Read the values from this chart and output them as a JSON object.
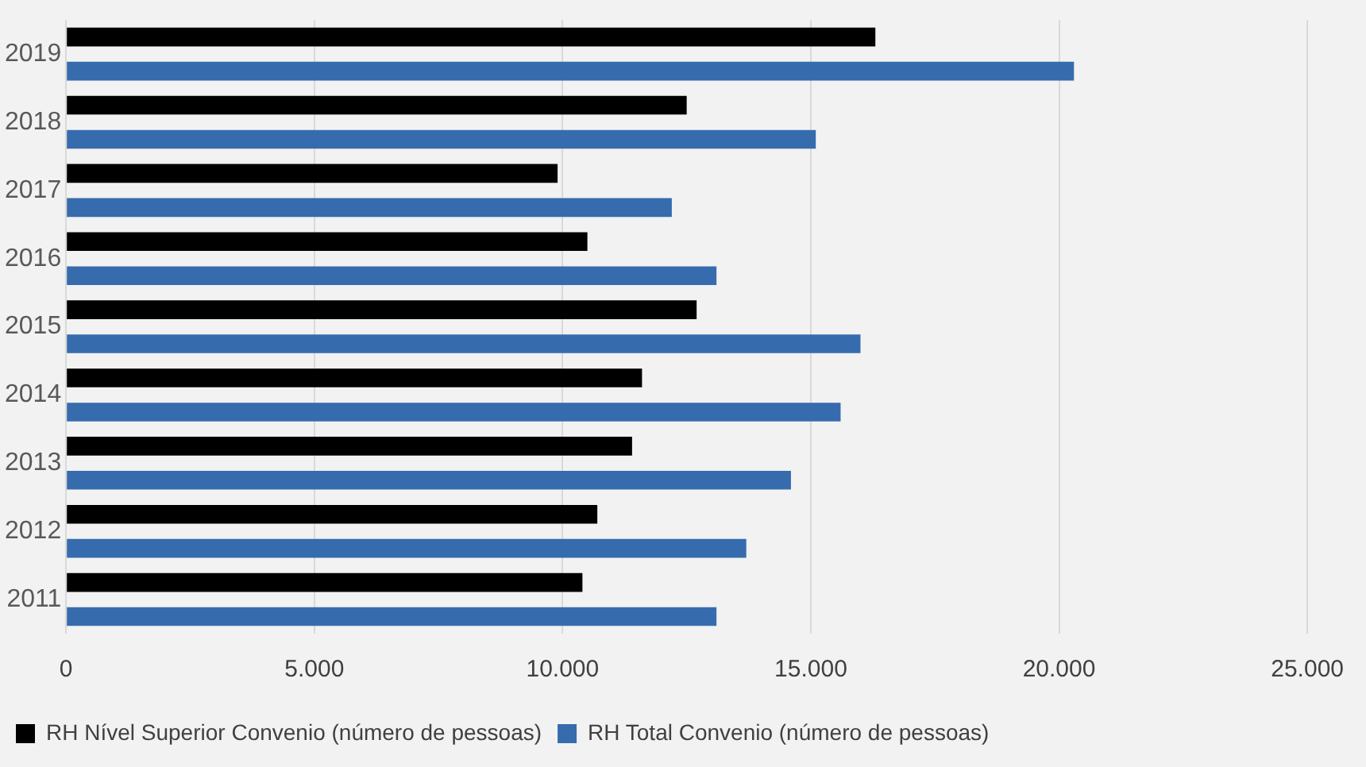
{
  "chart_data": {
    "type": "bar",
    "orientation": "horizontal",
    "categories": [
      "2019",
      "2018",
      "2017",
      "2016",
      "2015",
      "2014",
      "2013",
      "2012",
      "2011"
    ],
    "series": [
      {
        "name": "RH Nível Superior Convenio (número de pessoas)",
        "color": "#000000",
        "values": [
          16300,
          12500,
          9900,
          10500,
          12700,
          11600,
          11400,
          10700,
          10400
        ]
      },
      {
        "name": "RH Total Convenio (número de pessoas)",
        "color": "#366cad",
        "values": [
          20300,
          15100,
          12200,
          13100,
          16000,
          15600,
          14600,
          13700,
          13100
        ]
      }
    ],
    "xlim": [
      0,
      25000
    ],
    "xticks": [
      0,
      {
        "value": 5000,
        "label": "5.000"
      },
      {
        "value": 10000,
        "label": "10.000"
      },
      {
        "value": 15000,
        "label": "15.000"
      },
      {
        "value": 20000,
        "label": "20.000"
      },
      {
        "value": 25000,
        "label": "25.000"
      }
    ],
    "grid": "x",
    "legend": "bottom left"
  }
}
